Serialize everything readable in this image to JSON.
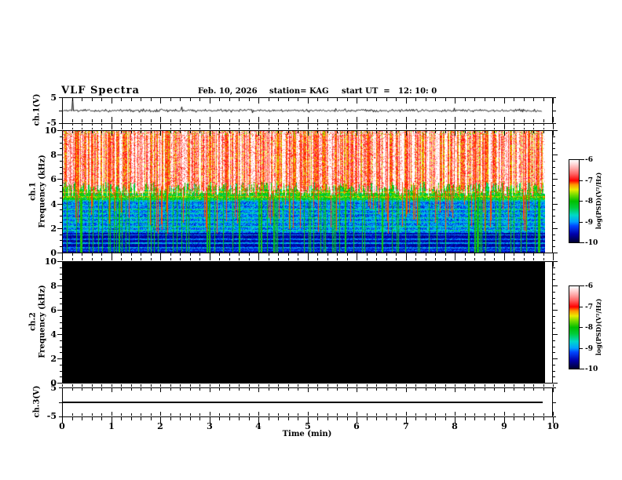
{
  "header": {
    "title": "VLF Spectra",
    "date": "Feb. 10, 2026",
    "station": "station= KAG",
    "start_ut": "start UT  =   12: 10: 0"
  },
  "left_labels": {
    "ch1v": "ch.1(V)",
    "ch1": "ch.1",
    "ch2": "ch.2",
    "freq_axis": "Frequency (kHz)",
    "ch3v": "ch.3(V)"
  },
  "xaxis": {
    "label": "Time (min)",
    "tick_labels": [
      "0",
      "1",
      "2",
      "3",
      "4",
      "5",
      "6",
      "7",
      "8",
      "9",
      "10"
    ]
  },
  "yaxis": {
    "freq_tick_labels": [
      "10",
      "8",
      "6",
      "4",
      "2",
      "0"
    ],
    "volt_tick_labels": [
      "5",
      "-5"
    ]
  },
  "colorbar": {
    "label": "log(PSD)(V²/Hz)",
    "tick_labels": [
      "-6",
      "-7",
      "-8",
      "-9",
      "-10"
    ]
  },
  "chart_data": {
    "type": "heatmap",
    "figure": "VLF multichannel spectrogram quicklook",
    "title": "VLF Spectra",
    "station": "KAG",
    "date": "Feb. 10, 2026",
    "start_ut": "12:10:0",
    "x": {
      "label": "Time (min)",
      "range": [
        0,
        10
      ],
      "data_end_min": 9.82,
      "minor_tick_step_min": 0.2
    },
    "colormap": {
      "value_label": "log(PSD)(V²/Hz)",
      "range": [
        -10,
        -6
      ],
      "ticks": [
        -6,
        -7,
        -8,
        -9,
        -10
      ],
      "stops": [
        {
          "t": 0.0,
          "c": "#000030"
        },
        {
          "t": 0.1,
          "c": "#0000aa"
        },
        {
          "t": 0.2,
          "c": "#0046ff"
        },
        {
          "t": 0.25,
          "c": "#00a0ff"
        },
        {
          "t": 0.33,
          "c": "#00d8c8"
        },
        {
          "t": 0.42,
          "c": "#00cd3c"
        },
        {
          "t": 0.5,
          "c": "#00be00"
        },
        {
          "t": 0.58,
          "c": "#78dc00"
        },
        {
          "t": 0.64,
          "c": "#ebeb00"
        },
        {
          "t": 0.7,
          "c": "#ff9600"
        },
        {
          "t": 0.75,
          "c": "#ff0000"
        },
        {
          "t": 0.83,
          "c": "#ff6464"
        },
        {
          "t": 0.9,
          "c": "#ffaaaa"
        },
        {
          "t": 0.96,
          "c": "#ffe1e1"
        },
        {
          "t": 1.0,
          "c": "#ffffff"
        }
      ]
    },
    "panels": [
      {
        "name": "ch.1(V)",
        "type": "line",
        "y_range_V": [
          -5,
          5
        ],
        "baseline_V": 0,
        "noise_sigma_V": 0.25,
        "spikes": [
          {
            "t_min": 0.19,
            "amp_V": 4.8
          },
          {
            "t_min": 2.42,
            "amp_V": 1.5
          },
          {
            "t_min": 3.85,
            "amp_V": -0.9
          },
          {
            "t_min": 5.55,
            "amp_V": 0.8
          },
          {
            "t_min": 7.97,
            "amp_V": 1.0
          },
          {
            "t_min": 9.3,
            "amp_V": 0.7
          }
        ]
      },
      {
        "name": "ch.1",
        "axis": "Frequency (kHz)",
        "type": "spectrogram",
        "y_range_kHz": [
          0,
          10
        ],
        "bands": [
          {
            "f_kHz": [
              5.3,
              10
            ],
            "base_log_psd": -7.6,
            "noise": 0.7,
            "description": "dense red/white vertical burst streaks"
          },
          {
            "f_kHz": [
              4.3,
              5.3
            ],
            "base_log_psd": -8.4,
            "noise": 0.8,
            "description": "yellow-green transition band with bright horizontal lines"
          },
          {
            "f_kHz": [
              1.6,
              4.3
            ],
            "base_log_psd": -9.15,
            "noise": 0.7,
            "description": "blue region with horizontal emission lines and vertical streaks"
          },
          {
            "f_kHz": [
              0,
              1.6
            ],
            "base_log_psd": -9.6,
            "noise": 0.45,
            "description": "very dark band with narrow cyan horizontal lines"
          }
        ],
        "horizontal_lines": [
          {
            "f_kHz": 4.95,
            "boost": 0.55
          },
          {
            "f_kHz": 4.6,
            "boost": 0.5
          },
          {
            "f_kHz": 4.25,
            "boost": 0.45
          },
          {
            "f_kHz": 3.9,
            "boost": 0.4
          },
          {
            "f_kHz": 3.55,
            "boost": 0.45
          },
          {
            "f_kHz": 3.2,
            "boost": 0.35
          },
          {
            "f_kHz": 2.85,
            "boost": 0.4
          },
          {
            "f_kHz": 2.5,
            "boost": 0.35
          },
          {
            "f_kHz": 2.15,
            "boost": 0.4
          },
          {
            "f_kHz": 1.8,
            "boost": 0.35
          },
          {
            "f_kHz": 1.45,
            "boost": 0.6
          },
          {
            "f_kHz": 1.1,
            "boost": 0.5
          },
          {
            "f_kHz": 0.75,
            "boost": 0.65
          },
          {
            "f_kHz": 0.4,
            "boost": 0.55
          },
          {
            "f_kHz": 0.18,
            "boost": 0.4
          }
        ],
        "streaks": {
          "strong_burst_prob": 0.5,
          "green_full_height_prob": 0.15,
          "red_descending_prob": 0.09
        }
      },
      {
        "name": "ch.2",
        "axis": "Frequency (kHz)",
        "type": "spectrogram",
        "y_range_kHz": [
          0,
          10
        ],
        "content": "no data - uniform black (at or below -10)"
      },
      {
        "name": "ch.3(V)",
        "type": "line",
        "y_range_V": [
          -5,
          5
        ],
        "content": "flat line at 0 V"
      }
    ]
  }
}
